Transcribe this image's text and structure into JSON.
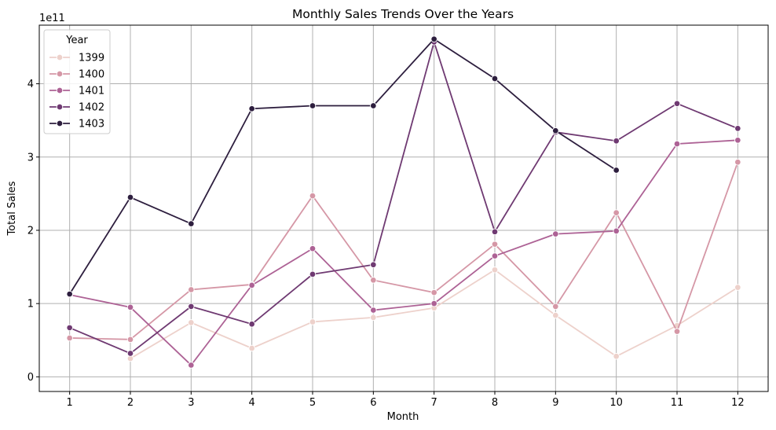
{
  "chart_data": {
    "type": "line",
    "title": "Monthly Sales Trends Over the Years",
    "xlabel": "Month",
    "ylabel": "Total Sales",
    "y_offset_label": "1e11",
    "categories": [
      "1",
      "2",
      "3",
      "4",
      "5",
      "6",
      "7",
      "8",
      "9",
      "10",
      "11",
      "12"
    ],
    "y_ticks": [
      "0",
      "1",
      "2",
      "3",
      "4"
    ],
    "ylim": [
      -0.2,
      4.8
    ],
    "y_unit_scale": 100000000000.0,
    "grid": true,
    "legend": {
      "title": "Year",
      "placement": "top-left"
    },
    "series": [
      {
        "name": "1399",
        "color": "#edd1cb",
        "values": [
          null,
          0.25,
          0.74,
          0.39,
          0.75,
          0.81,
          0.94,
          1.46,
          0.84,
          0.28,
          0.7,
          1.22
        ]
      },
      {
        "name": "1400",
        "color": "#d597a6",
        "values": [
          0.53,
          0.51,
          1.19,
          1.26,
          2.47,
          1.32,
          1.15,
          1.81,
          0.96,
          2.24,
          0.62,
          2.93
        ]
      },
      {
        "name": "1401",
        "color": "#ad6295",
        "values": [
          1.12,
          0.95,
          0.16,
          1.25,
          1.75,
          0.91,
          1.0,
          1.65,
          1.95,
          1.99,
          3.18,
          3.23
        ]
      },
      {
        "name": "1402",
        "color": "#6f3a72",
        "values": [
          0.67,
          0.32,
          0.96,
          0.72,
          1.4,
          1.53,
          4.57,
          1.98,
          3.34,
          3.22,
          3.73,
          3.39
        ]
      },
      {
        "name": "1403",
        "color": "#2d1e3e",
        "values": [
          1.13,
          2.45,
          2.09,
          3.66,
          3.7,
          3.7,
          4.61,
          4.07,
          3.36,
          2.82,
          null,
          null
        ]
      }
    ]
  }
}
